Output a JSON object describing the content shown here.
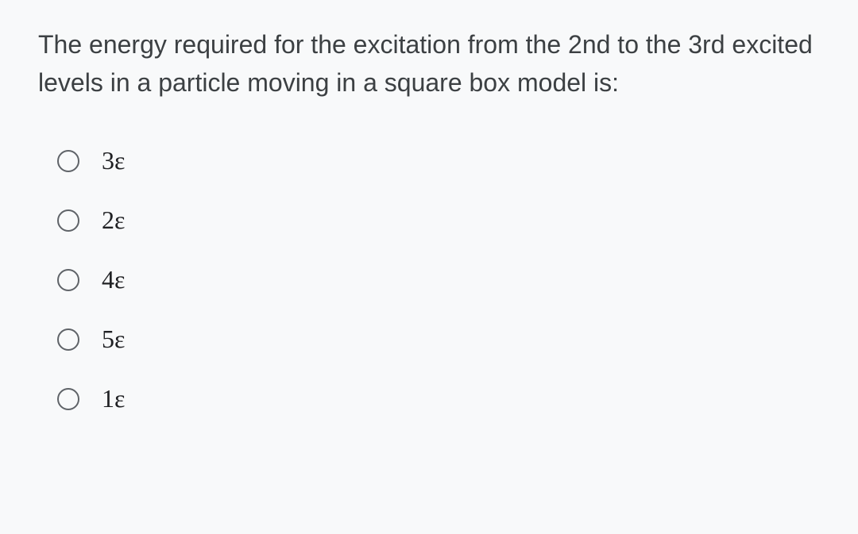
{
  "question": {
    "text": "The energy required for the excitation from the 2nd to the 3rd excited levels in a particle moving in a square box model is:",
    "text_color": "#3c4043",
    "fontsize": 32
  },
  "options": [
    {
      "label": "3ε"
    },
    {
      "label": "2ε"
    },
    {
      "label": "4ε"
    },
    {
      "label": "5ε"
    },
    {
      "label": "1ε"
    }
  ],
  "styling": {
    "background_color": "#f8f9fa",
    "radio_border_color": "#5f6368",
    "option_text_color": "#202124",
    "option_fontsize": 32,
    "radio_size": 28
  }
}
